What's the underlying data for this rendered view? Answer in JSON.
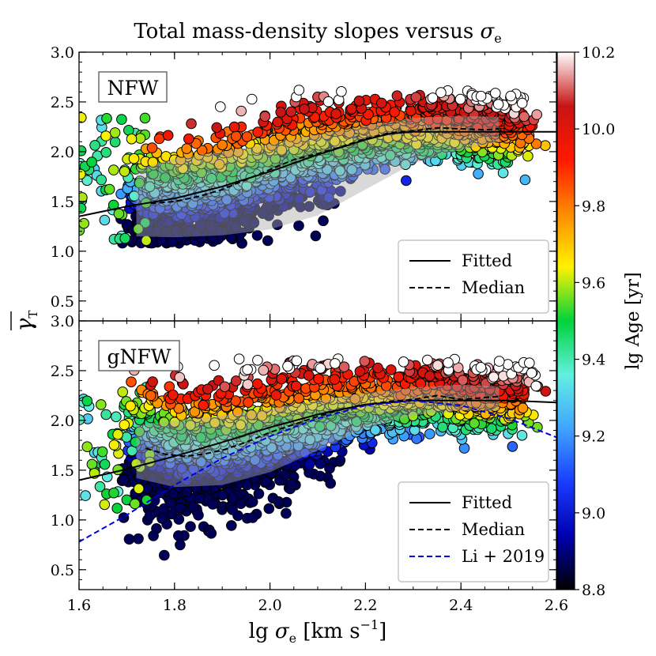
{
  "chart_data": {
    "type": "scatter",
    "title_main": "Total mass-density slopes versus ",
    "title_sym": "σ",
    "title_sub": "e",
    "ylabel_sym": "γ",
    "ylabel_sub": "T",
    "xlabel_pre": "lg ",
    "xlabel_sym": "σ",
    "xlabel_sub": "e",
    "xlabel_unit": " [km s",
    "xlabel_exp": "−1",
    "xlabel_end": "]",
    "xlim": [
      1.6,
      2.6
    ],
    "xticks": [
      "1.6",
      "1.8",
      "2.0",
      "2.2",
      "2.4",
      "2.6"
    ],
    "colorbar": {
      "label": "lg Age [yr]",
      "range": [
        8.8,
        10.2
      ],
      "ticks": [
        "8.8",
        "9.0",
        "9.2",
        "9.4",
        "9.6",
        "9.8",
        "10.0",
        "10.2"
      ],
      "colors": [
        "#000000",
        "#0000b0",
        "#1a3cff",
        "#3fa4ff",
        "#62f0e0",
        "#00d23c",
        "#fff200",
        "#ff8a00",
        "#ff1800",
        "#c81414",
        "#ffffff"
      ]
    },
    "panels": [
      {
        "label": "NFW",
        "ylim": [
          0.3,
          3.0
        ],
        "yticks": [
          "0.5",
          "1.0",
          "1.5",
          "2.0",
          "2.5",
          "3.0"
        ],
        "legend": [
          "Fitted",
          "Median"
        ],
        "band_upper": [
          [
            1.72,
            1.82
          ],
          [
            1.8,
            1.93
          ],
          [
            1.9,
            2.0
          ],
          [
            2.0,
            2.08
          ],
          [
            2.1,
            2.17
          ],
          [
            2.2,
            2.26
          ],
          [
            2.3,
            2.34
          ],
          [
            2.4,
            2.36
          ],
          [
            2.48,
            2.35
          ]
        ],
        "band_lower": [
          [
            1.72,
            1.15
          ],
          [
            1.8,
            1.14
          ],
          [
            1.9,
            1.16
          ],
          [
            2.0,
            1.22
          ],
          [
            2.1,
            1.36
          ],
          [
            2.2,
            1.62
          ],
          [
            2.3,
            1.88
          ],
          [
            2.4,
            2.02
          ],
          [
            2.48,
            2.1
          ]
        ],
        "series": [
          {
            "name": "Fitted",
            "style": "solid",
            "color": "#000000",
            "x": [
              1.6,
              1.7,
              1.8,
              1.9,
              2.0,
              2.1,
              2.2,
              2.25,
              2.3,
              2.4,
              2.5,
              2.6
            ],
            "y": [
              1.35,
              1.45,
              1.53,
              1.65,
              1.8,
              1.97,
              2.12,
              2.18,
              2.2,
              2.2,
              2.2,
              2.2
            ]
          },
          {
            "name": "Median",
            "style": "dashed",
            "color": "#000000",
            "x": [
              1.75,
              1.8,
              1.85,
              1.9,
              1.95,
              2.0,
              2.05,
              2.1,
              2.15,
              2.2,
              2.25,
              2.3,
              2.35,
              2.4,
              2.45,
              2.48
            ],
            "y": [
              1.48,
              1.5,
              1.55,
              1.62,
              1.72,
              1.82,
              1.92,
              1.98,
              2.05,
              2.13,
              2.19,
              2.21,
              2.24,
              2.23,
              2.22,
              2.23
            ]
          }
        ]
      },
      {
        "label": "gNFW",
        "ylim": [
          0.3,
          3.0
        ],
        "yticks": [
          "0.5",
          "1.0",
          "1.5",
          "2.0",
          "2.5",
          "3.0"
        ],
        "legend": [
          "Fitted",
          "Median",
          "Li + 2019"
        ],
        "band_upper": [
          [
            1.72,
            1.95
          ],
          [
            1.8,
            2.0
          ],
          [
            1.9,
            2.05
          ],
          [
            2.0,
            2.12
          ],
          [
            2.1,
            2.2
          ],
          [
            2.2,
            2.28
          ],
          [
            2.3,
            2.33
          ],
          [
            2.4,
            2.36
          ],
          [
            2.48,
            2.34
          ]
        ],
        "band_lower": [
          [
            1.72,
            1.42
          ],
          [
            1.8,
            1.33
          ],
          [
            1.9,
            1.35
          ],
          [
            2.0,
            1.48
          ],
          [
            2.1,
            1.7
          ],
          [
            2.2,
            1.92
          ],
          [
            2.3,
            2.05
          ],
          [
            2.4,
            2.1
          ],
          [
            2.48,
            2.1
          ]
        ],
        "series": [
          {
            "name": "Fitted",
            "style": "solid",
            "color": "#000000",
            "x": [
              1.6,
              1.7,
              1.8,
              1.9,
              2.0,
              2.1,
              2.2,
              2.3,
              2.4,
              2.5,
              2.6
            ],
            "y": [
              1.4,
              1.51,
              1.64,
              1.78,
              1.93,
              2.06,
              2.16,
              2.2,
              2.2,
              2.2,
              2.18
            ]
          },
          {
            "name": "Median",
            "style": "dashed",
            "color": "#000000",
            "x": [
              1.74,
              1.78,
              1.82,
              1.86,
              1.9,
              1.95,
              2.0,
              2.05,
              2.1,
              2.15,
              2.2,
              2.25,
              2.3,
              2.35,
              2.4,
              2.45,
              2.48
            ],
            "y": [
              1.72,
              1.66,
              1.64,
              1.66,
              1.7,
              1.78,
              1.88,
              1.96,
              2.04,
              2.11,
              2.16,
              2.19,
              2.21,
              2.25,
              2.21,
              2.23,
              2.24
            ]
          },
          {
            "name": "Li + 2019",
            "style": "dashed",
            "color": "#0000e0",
            "x": [
              1.6,
              1.7,
              1.8,
              1.9,
              2.0,
              2.1,
              2.2,
              2.3,
              2.4,
              2.5,
              2.6
            ],
            "y": [
              0.78,
              1.05,
              1.35,
              1.62,
              1.84,
              2.02,
              2.15,
              2.2,
              2.15,
              2.02,
              1.83
            ]
          }
        ]
      }
    ]
  }
}
